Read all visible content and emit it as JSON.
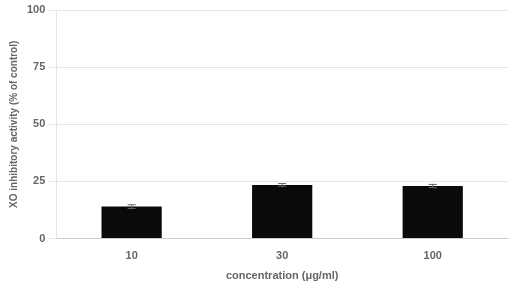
{
  "chart_data": {
    "type": "bar",
    "categories": [
      "10",
      "30",
      "100"
    ],
    "values": [
      14.0,
      23.5,
      23.0
    ],
    "errors": [
      0.8,
      0.6,
      0.7
    ],
    "color": "#0a0a0a",
    "xlabel": "concentration (μg/ml)",
    "ylabel": "XO inhibitory activity (% of control)",
    "ylim": [
      0,
      100
    ],
    "yticks": [
      0,
      25,
      50,
      75,
      100
    ],
    "grid": true
  }
}
